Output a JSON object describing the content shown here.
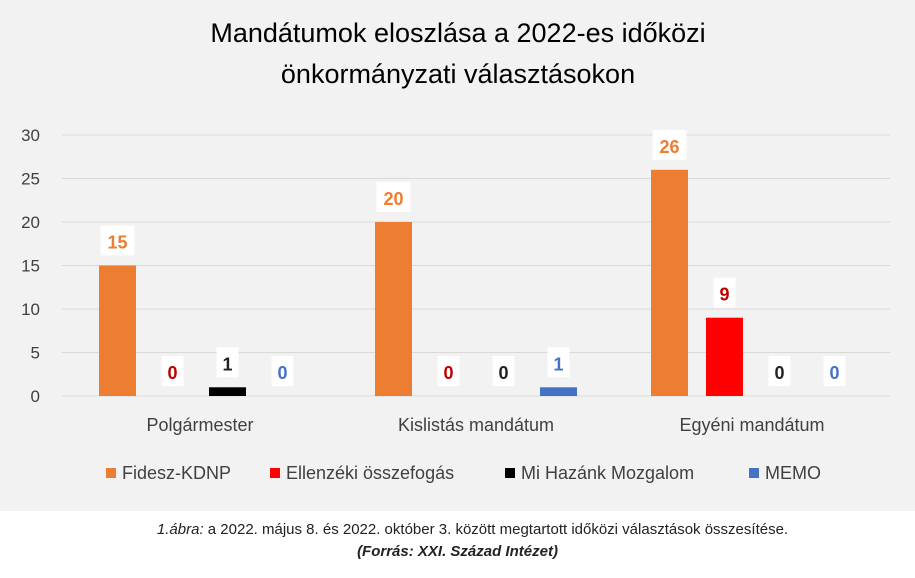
{
  "chart_data": {
    "type": "bar",
    "title_lines": [
      "Mandátumok eloszlása a 2022-es időközi",
      "önkormányzati választásokon"
    ],
    "categories": [
      "Polgármester",
      "Kislistás mandátum",
      "Egyéni mandátum"
    ],
    "series": [
      {
        "name": "Fidesz-KDNP",
        "values": [
          15,
          20,
          26
        ],
        "color": "#ed7d31",
        "label_color": "#ed7d31"
      },
      {
        "name": "Ellenzéki összefogás",
        "values": [
          0,
          0,
          9
        ],
        "color": "#ff0000",
        "label_color": "#c00000"
      },
      {
        "name": "Mi Hazánk Mozgalom",
        "values": [
          1,
          0,
          0
        ],
        "color": "#000000",
        "label_color": "#222222"
      },
      {
        "name": "MEMO",
        "values": [
          0,
          1,
          0
        ],
        "color": "#4472c4",
        "label_color": "#4472c4"
      }
    ],
    "ylim": [
      0,
      30
    ],
    "yticks": [
      "0",
      "5",
      "10",
      "15",
      "20",
      "25",
      "30"
    ],
    "grid": true,
    "legend_position": "bottom",
    "xlabel": "",
    "ylabel": ""
  },
  "caption": {
    "figure_label": "1.ábra:",
    "text": " a 2022. május 8. és 2022. október 3. között megtartott időközi választások összesítése.",
    "source": "(Forrás: XXI. Század Intézet)"
  }
}
